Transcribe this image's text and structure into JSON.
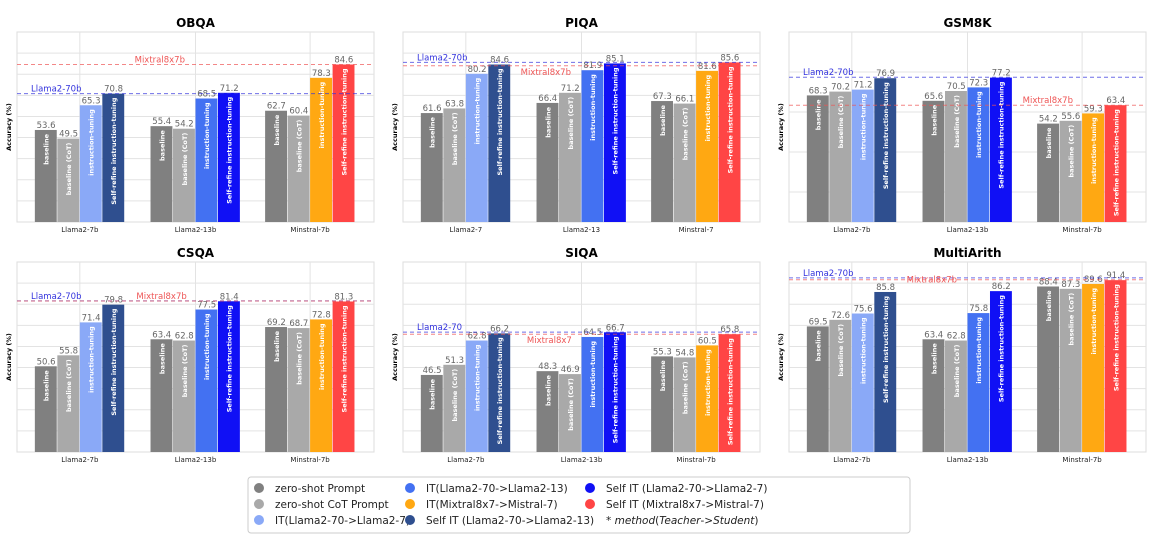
{
  "legend": {
    "items": [
      {
        "label": "zero-shot Prompt",
        "color": "#808080"
      },
      {
        "label": "zero-shot CoT Prompt",
        "color": "#a9a9a9"
      },
      {
        "label": "IT(Llama2-70->Llama2-7)",
        "color": "#8aa9f7"
      },
      {
        "label": "IT(Llama2-70->Llama2-13)",
        "color": "#4371f2"
      },
      {
        "label": "IT(Mixtral8x7->Mistral-7)",
        "color": "#ffa812"
      },
      {
        "label": "Self IT (Llama2-70->Llama2-13)",
        "color": "#2f4f8f"
      },
      {
        "label": "Self IT (Llama2-70->Llama2-7)",
        "color": "#1010f5"
      },
      {
        "label": "Self IT (Mixtral8x7->Mistral-7)",
        "color": "#ff4545"
      }
    ],
    "note": [
      "* ",
      "method",
      "(",
      "Teacher",
      "->",
      "Student",
      ")"
    ]
  },
  "chart_data": [
    {
      "type": "bar",
      "title": "OBQA",
      "ylabel": "Accuracy (%)",
      "ylim": [
        10,
        100
      ],
      "grid": true,
      "grid_step": 10,
      "categories": [
        "Llama2-7b",
        "Llama2-13b",
        "Minstral-7b"
      ],
      "bar_labels": [
        "baseline",
        "baseline (CoT)",
        "instruction-tuning",
        "Self-refine instruction-tuning"
      ],
      "values": [
        [
          53.6,
          49.5,
          65.3,
          70.8
        ],
        [
          55.4,
          54.2,
          68.5,
          71.2
        ],
        [
          62.7,
          60.4,
          78.3,
          84.6
        ]
      ],
      "reference_lines": [
        {
          "label": "Llama2-70b",
          "value": 70.8,
          "color": "#3333dd"
        },
        {
          "label": "Mixtral8x7b",
          "value": 84.6,
          "color": "#ee5555"
        }
      ]
    },
    {
      "type": "bar",
      "title": "PIQA",
      "ylabel": "Accuracy (%)",
      "ylim": [
        10,
        100
      ],
      "grid": true,
      "grid_step": 10,
      "categories": [
        "Llama2-7",
        "Llama2-13",
        "Minstral-7"
      ],
      "bar_labels": [
        "baseline",
        "baseline (CoT)",
        "instruction-tuning",
        "Self-refine instruction-tuning"
      ],
      "values": [
        [
          61.6,
          63.8,
          80.2,
          84.6
        ],
        [
          66.4,
          71.2,
          81.9,
          85.1
        ],
        [
          67.3,
          66.1,
          81.6,
          85.6
        ]
      ],
      "reference_lines": [
        {
          "label": "Llama2-70b",
          "value": 85.6,
          "color": "#3333dd"
        },
        {
          "label": "Mixtral8x7b",
          "value": 84.0,
          "color": "#ee5555"
        }
      ]
    },
    {
      "type": "bar",
      "title": "GSM8K",
      "ylabel": "Accuracy (%)",
      "ylim": [
        5,
        100
      ],
      "grid": true,
      "grid_step": 20,
      "categories": [
        "Llama2-7b",
        "Llama2-13b",
        "Minstral-7b"
      ],
      "bar_labels": [
        "baseline",
        "baseline (CoT)",
        "instruction-tuning",
        "Self-refine instruction-tuning"
      ],
      "values": [
        [
          68.3,
          70.2,
          71.2,
          76.9
        ],
        [
          65.6,
          70.5,
          72.3,
          77.2
        ],
        [
          54.2,
          55.6,
          59.3,
          63.4
        ]
      ],
      "reference_lines": [
        {
          "label": "Llama2-70b",
          "value": 77.4,
          "color": "#3333dd"
        },
        {
          "label": "Mixtral8x7b",
          "value": 63.4,
          "color": "#ee5555"
        }
      ]
    },
    {
      "type": "bar",
      "title": "CSQA",
      "ylabel": "Accuracy (%)",
      "ylim": [
        10,
        100
      ],
      "grid": true,
      "grid_step": 10,
      "categories": [
        "Llama2-7b",
        "Llama2-13b",
        "Minstral-7b"
      ],
      "bar_labels": [
        "baseline",
        "baseline (CoT)",
        "instruction-tuning",
        "Self-refine instruction-tuning"
      ],
      "values": [
        [
          50.6,
          55.8,
          71.4,
          79.8
        ],
        [
          63.4,
          62.8,
          77.5,
          81.4
        ],
        [
          69.2,
          68.7,
          72.8,
          81.3
        ]
      ],
      "reference_lines": [
        {
          "label": "Llama2-70b",
          "value": 81.6,
          "color": "#3333dd"
        },
        {
          "label": "Mixtral8x7b",
          "value": 81.5,
          "color": "#ee5555"
        }
      ]
    },
    {
      "type": "bar",
      "title": "SIQA",
      "ylabel": "Accuracy (%)",
      "ylim": [
        10,
        100
      ],
      "grid": true,
      "grid_step": 10,
      "categories": [
        "Llama2-7b",
        "Llama2-13b",
        "Minstral-7b"
      ],
      "bar_labels": [
        "baseline",
        "baseline (CoT)",
        "instruction-tuning",
        "Self-refine instruction-tuning"
      ],
      "values": [
        [
          46.5,
          51.3,
          62.8,
          66.2
        ],
        [
          48.3,
          46.9,
          64.5,
          66.7
        ],
        [
          55.3,
          54.8,
          60.5,
          65.8
        ]
      ],
      "reference_lines": [
        {
          "label": "Llama2-70",
          "value": 66.8,
          "color": "#3333dd"
        },
        {
          "label": "Mixtral8x7",
          "value": 65.8,
          "color": "#ee5555"
        }
      ]
    },
    {
      "type": "bar",
      "title": "MultiArith",
      "ylabel": "Accuracy (%)",
      "ylim": [
        10,
        100
      ],
      "grid": true,
      "grid_step": 10,
      "categories": [
        "Llama2-7b",
        "Llama2-13b",
        "Minstral-7b"
      ],
      "bar_labels": [
        "baseline",
        "baseline (CoT)",
        "instruction-tuning",
        "Self-refine instruction-tuning"
      ],
      "values": [
        [
          69.5,
          72.6,
          75.6,
          85.8
        ],
        [
          63.4,
          62.8,
          75.8,
          86.2
        ],
        [
          88.4,
          87.3,
          89.6,
          91.4
        ]
      ],
      "reference_lines": [
        {
          "label": "Llama2-70b",
          "value": 92.5,
          "color": "#3333dd"
        },
        {
          "label": "Mixtral8x7b",
          "value": 91.6,
          "color": "#ee5555"
        }
      ]
    }
  ],
  "bar_colors": [
    [
      "#808080",
      "#a9a9a9",
      "#8aa9f7",
      "#2f4f8f"
    ],
    [
      "#808080",
      "#a9a9a9",
      "#4371f2",
      "#1010f5"
    ],
    [
      "#808080",
      "#a9a9a9",
      "#ffa812",
      "#ff4545"
    ]
  ]
}
